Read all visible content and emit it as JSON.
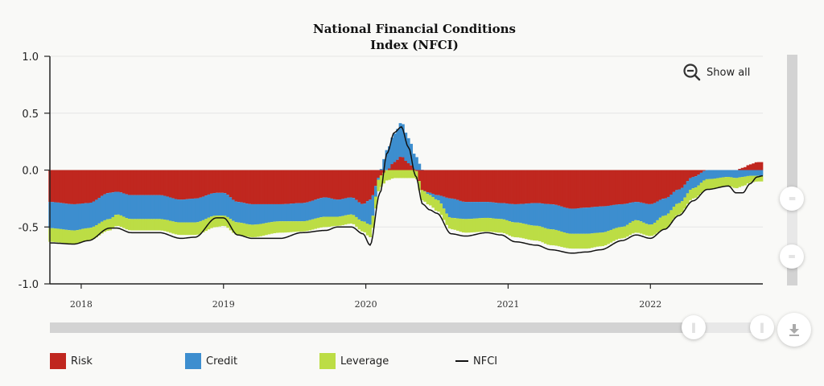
{
  "chart_data": {
    "type": "bar",
    "subtype": "stacked-bar-with-line",
    "title": "National Financial Conditions Index (NFCI)",
    "title_lines": [
      "National Financial Conditions",
      "Index (NFCI)"
    ],
    "xlabel": "",
    "ylabel": "",
    "ylim": [
      -1.0,
      1.0
    ],
    "yticks": [
      "1.0",
      "0.5",
      "0.0",
      "-0.5",
      "-1.0"
    ],
    "ytick_values": [
      1.0,
      0.5,
      0.0,
      -0.5,
      -1.0
    ],
    "xlim": [
      2017.78,
      2022.79
    ],
    "xticks": [
      "2018",
      "2019",
      "2020",
      "2021",
      "2022"
    ],
    "xtick_values": [
      2018,
      2019,
      2020,
      2021,
      2022
    ],
    "frequency": "weekly",
    "grid": true,
    "legend_position": "bottom",
    "colors": {
      "risk": "#c0271f",
      "credit": "#3d8ecf",
      "leverage": "#bcdd45",
      "nfci": "#111111"
    },
    "series": [
      {
        "name": "Risk",
        "type": "stacked-bar",
        "anchors": [
          [
            2017.78,
            -0.28
          ],
          [
            2017.95,
            -0.3
          ],
          [
            2018.05,
            -0.29
          ],
          [
            2018.2,
            -0.2
          ],
          [
            2018.25,
            -0.19
          ],
          [
            2018.35,
            -0.22
          ],
          [
            2018.55,
            -0.22
          ],
          [
            2018.7,
            -0.26
          ],
          [
            2018.8,
            -0.25
          ],
          [
            2018.95,
            -0.2
          ],
          [
            2019.0,
            -0.2
          ],
          [
            2019.1,
            -0.28
          ],
          [
            2019.2,
            -0.3
          ],
          [
            2019.4,
            -0.3
          ],
          [
            2019.55,
            -0.29
          ],
          [
            2019.72,
            -0.24
          ],
          [
            2019.8,
            -0.26
          ],
          [
            2019.9,
            -0.24
          ],
          [
            2019.98,
            -0.3
          ],
          [
            2020.03,
            -0.26
          ],
          [
            2020.1,
            -0.05
          ],
          [
            2020.15,
            0.0
          ],
          [
            2020.2,
            0.07
          ],
          [
            2020.25,
            0.12
          ],
          [
            2020.3,
            0.06
          ],
          [
            2020.35,
            0.0
          ],
          [
            2020.4,
            -0.18
          ],
          [
            2020.45,
            -0.2
          ],
          [
            2020.5,
            -0.22
          ],
          [
            2020.6,
            -0.25
          ],
          [
            2020.7,
            -0.28
          ],
          [
            2020.85,
            -0.28
          ],
          [
            2020.95,
            -0.29
          ],
          [
            2021.05,
            -0.3
          ],
          [
            2021.2,
            -0.29
          ],
          [
            2021.3,
            -0.3
          ],
          [
            2021.45,
            -0.34
          ],
          [
            2021.55,
            -0.33
          ],
          [
            2021.65,
            -0.32
          ],
          [
            2021.8,
            -0.3
          ],
          [
            2021.9,
            -0.28
          ],
          [
            2022.0,
            -0.3
          ],
          [
            2022.1,
            -0.25
          ],
          [
            2022.2,
            -0.17
          ],
          [
            2022.3,
            -0.06
          ],
          [
            2022.4,
            0.0
          ],
          [
            2022.55,
            0.0
          ],
          [
            2022.6,
            0.0
          ],
          [
            2022.65,
            0.02
          ],
          [
            2022.7,
            0.05
          ],
          [
            2022.75,
            0.07
          ],
          [
            2022.79,
            0.07
          ]
        ]
      },
      {
        "name": "Credit",
        "type": "stacked-bar",
        "anchors": [
          [
            2017.78,
            -0.23
          ],
          [
            2017.95,
            -0.23
          ],
          [
            2018.05,
            -0.22
          ],
          [
            2018.2,
            -0.23
          ],
          [
            2018.25,
            -0.2
          ],
          [
            2018.35,
            -0.21
          ],
          [
            2018.55,
            -0.21
          ],
          [
            2018.7,
            -0.2
          ],
          [
            2018.8,
            -0.21
          ],
          [
            2018.95,
            -0.2
          ],
          [
            2019.0,
            -0.2
          ],
          [
            2019.1,
            -0.18
          ],
          [
            2019.2,
            -0.18
          ],
          [
            2019.4,
            -0.15
          ],
          [
            2019.55,
            -0.16
          ],
          [
            2019.72,
            -0.17
          ],
          [
            2019.8,
            -0.15
          ],
          [
            2019.9,
            -0.15
          ],
          [
            2019.98,
            -0.15
          ],
          [
            2020.03,
            -0.22
          ],
          [
            2020.1,
            0.0
          ],
          [
            2020.15,
            0.18
          ],
          [
            2020.2,
            0.25
          ],
          [
            2020.25,
            0.3
          ],
          [
            2020.3,
            0.22
          ],
          [
            2020.35,
            0.12
          ],
          [
            2020.4,
            0.0
          ],
          [
            2020.45,
            -0.02
          ],
          [
            2020.5,
            -0.04
          ],
          [
            2020.6,
            -0.17
          ],
          [
            2020.7,
            -0.15
          ],
          [
            2020.85,
            -0.14
          ],
          [
            2020.95,
            -0.14
          ],
          [
            2021.05,
            -0.16
          ],
          [
            2021.2,
            -0.2
          ],
          [
            2021.3,
            -0.22
          ],
          [
            2021.45,
            -0.22
          ],
          [
            2021.55,
            -0.23
          ],
          [
            2021.65,
            -0.23
          ],
          [
            2021.8,
            -0.2
          ],
          [
            2021.9,
            -0.16
          ],
          [
            2022.0,
            -0.18
          ],
          [
            2022.1,
            -0.15
          ],
          [
            2022.2,
            -0.12
          ],
          [
            2022.3,
            -0.1
          ],
          [
            2022.4,
            -0.08
          ],
          [
            2022.55,
            -0.06
          ],
          [
            2022.6,
            -0.07
          ],
          [
            2022.65,
            -0.06
          ],
          [
            2022.7,
            -0.05
          ],
          [
            2022.75,
            -0.05
          ],
          [
            2022.79,
            -0.05
          ]
        ]
      },
      {
        "name": "Leverage",
        "type": "stacked-bar",
        "anchors": [
          [
            2017.78,
            -0.12
          ],
          [
            2017.95,
            -0.12
          ],
          [
            2018.05,
            -0.11
          ],
          [
            2018.2,
            -0.1
          ],
          [
            2018.25,
            -0.1
          ],
          [
            2018.35,
            -0.1
          ],
          [
            2018.55,
            -0.1
          ],
          [
            2018.7,
            -0.11
          ],
          [
            2018.8,
            -0.11
          ],
          [
            2018.95,
            -0.1
          ],
          [
            2019.0,
            -0.09
          ],
          [
            2019.1,
            -0.11
          ],
          [
            2019.2,
            -0.11
          ],
          [
            2019.4,
            -0.1
          ],
          [
            2019.55,
            -0.09
          ],
          [
            2019.72,
            -0.09
          ],
          [
            2019.8,
            -0.08
          ],
          [
            2019.9,
            -0.08
          ],
          [
            2019.98,
            -0.09
          ],
          [
            2020.03,
            -0.11
          ],
          [
            2020.1,
            -0.1
          ],
          [
            2020.15,
            -0.09
          ],
          [
            2020.2,
            -0.07
          ],
          [
            2020.25,
            -0.07
          ],
          [
            2020.3,
            -0.07
          ],
          [
            2020.35,
            -0.07
          ],
          [
            2020.4,
            -0.09
          ],
          [
            2020.45,
            -0.09
          ],
          [
            2020.5,
            -0.1
          ],
          [
            2020.6,
            -0.1
          ],
          [
            2020.7,
            -0.12
          ],
          [
            2020.85,
            -0.12
          ],
          [
            2020.95,
            -0.12
          ],
          [
            2021.05,
            -0.13
          ],
          [
            2021.2,
            -0.13
          ],
          [
            2021.3,
            -0.14
          ],
          [
            2021.45,
            -0.13
          ],
          [
            2021.55,
            -0.13
          ],
          [
            2021.65,
            -0.12
          ],
          [
            2021.8,
            -0.1
          ],
          [
            2021.9,
            -0.11
          ],
          [
            2022.0,
            -0.1
          ],
          [
            2022.1,
            -0.12
          ],
          [
            2022.2,
            -0.1
          ],
          [
            2022.3,
            -0.09
          ],
          [
            2022.4,
            -0.09
          ],
          [
            2022.55,
            -0.08
          ],
          [
            2022.6,
            -0.09
          ],
          [
            2022.65,
            -0.08
          ],
          [
            2022.7,
            -0.06
          ],
          [
            2022.75,
            -0.05
          ],
          [
            2022.79,
            -0.05
          ]
        ]
      },
      {
        "name": "NFCI",
        "type": "line",
        "anchors": [
          [
            2017.78,
            -0.64
          ],
          [
            2017.95,
            -0.65
          ],
          [
            2018.05,
            -0.62
          ],
          [
            2018.2,
            -0.51
          ],
          [
            2018.25,
            -0.51
          ],
          [
            2018.35,
            -0.55
          ],
          [
            2018.55,
            -0.55
          ],
          [
            2018.7,
            -0.6
          ],
          [
            2018.8,
            -0.59
          ],
          [
            2018.95,
            -0.42
          ],
          [
            2019.0,
            -0.42
          ],
          [
            2019.1,
            -0.57
          ],
          [
            2019.2,
            -0.6
          ],
          [
            2019.4,
            -0.6
          ],
          [
            2019.55,
            -0.55
          ],
          [
            2019.72,
            -0.53
          ],
          [
            2019.8,
            -0.5
          ],
          [
            2019.9,
            -0.5
          ],
          [
            2019.98,
            -0.56
          ],
          [
            2020.03,
            -0.66
          ],
          [
            2020.1,
            -0.2
          ],
          [
            2020.15,
            0.15
          ],
          [
            2020.2,
            0.33
          ],
          [
            2020.25,
            0.38
          ],
          [
            2020.3,
            0.2
          ],
          [
            2020.35,
            -0.05
          ],
          [
            2020.4,
            -0.3
          ],
          [
            2020.45,
            -0.35
          ],
          [
            2020.5,
            -0.38
          ],
          [
            2020.6,
            -0.56
          ],
          [
            2020.7,
            -0.58
          ],
          [
            2020.85,
            -0.55
          ],
          [
            2020.95,
            -0.57
          ],
          [
            2021.05,
            -0.63
          ],
          [
            2021.2,
            -0.66
          ],
          [
            2021.3,
            -0.7
          ],
          [
            2021.45,
            -0.73
          ],
          [
            2021.55,
            -0.72
          ],
          [
            2021.65,
            -0.7
          ],
          [
            2021.8,
            -0.62
          ],
          [
            2021.9,
            -0.57
          ],
          [
            2022.0,
            -0.6
          ],
          [
            2022.1,
            -0.52
          ],
          [
            2022.2,
            -0.4
          ],
          [
            2022.3,
            -0.27
          ],
          [
            2022.4,
            -0.17
          ],
          [
            2022.55,
            -0.14
          ],
          [
            2022.6,
            -0.2
          ],
          [
            2022.65,
            -0.2
          ],
          [
            2022.7,
            -0.12
          ],
          [
            2022.75,
            -0.06
          ],
          [
            2022.79,
            -0.05
          ]
        ]
      }
    ]
  },
  "controls": {
    "show_all_label": "Show all",
    "zoom_out_icon": "zoom-out-icon",
    "download_icon": "download-icon",
    "navigator_handle_icon": "grip-icon"
  },
  "legend": [
    {
      "label": "Risk",
      "color": "#c0271f",
      "kind": "swatch"
    },
    {
      "label": "Credit",
      "color": "#3d8ecf",
      "kind": "swatch"
    },
    {
      "label": "Leverage",
      "color": "#bcdd45",
      "kind": "swatch"
    },
    {
      "label": "NFCI",
      "color": "#111111",
      "kind": "line"
    }
  ]
}
